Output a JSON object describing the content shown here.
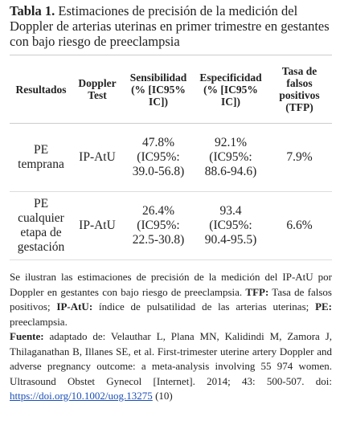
{
  "caption": {
    "label": "Tabla 1.",
    "text": "Estimaciones de precisión de la medición del Doppler de arterias uterinas en primer trimestre en gestantes con bajo riesgo de preeclampsia"
  },
  "table": {
    "header": [
      "Resultados",
      "Doppler Test",
      "Sensibilidad (% [IC95% IC])",
      "Especificidad (% [IC95% IC])",
      "Tasa de falsos positivos (TFP)"
    ],
    "rows": [
      [
        "PE temprana",
        "IP-AtU",
        "47.8% (IC95%: 39.0-56.8)",
        "92.1% (IC95%: 88.6-94.6)",
        "7.9%"
      ],
      [
        "PE cualquier etapa de gestación",
        "IP-AtU",
        "26.4% (IC95%: 22.5-30.8)",
        "93.4 (IC95%: 90.4-95.5)",
        "6.6%"
      ]
    ]
  },
  "notes": {
    "intro": "Se ilustran las estimaciones de precisión de la medición del IP-AtU por Doppler en gestantes con bajo riesgo de preeclampsia.",
    "tfp_label": "TFP:",
    "tfp_text": "Tasa de falsos positivos;",
    "ipatu_label": "IP-AtU:",
    "ipatu_text": "índice de pulsatilidad de las arterias uterinas;",
    "pe_label": "PE:",
    "pe_text": "preeclampsia."
  },
  "source": {
    "label": "Fuente:",
    "text": "adaptado de: Velauthar L, Plana MN, Kalidindi M, Zamora J, Thilaganathan B, Illanes SE, et al. First-trimester uterine artery Doppler and adverse pregnancy outcome: a meta-analysis involving 55 974 women. Ultrasound Obstet Gynecol [Internet]. 2014; 43: 500-507. doi:",
    "url": "https://doi.org/10.1002/uog.13275",
    "ref": "(10)"
  }
}
